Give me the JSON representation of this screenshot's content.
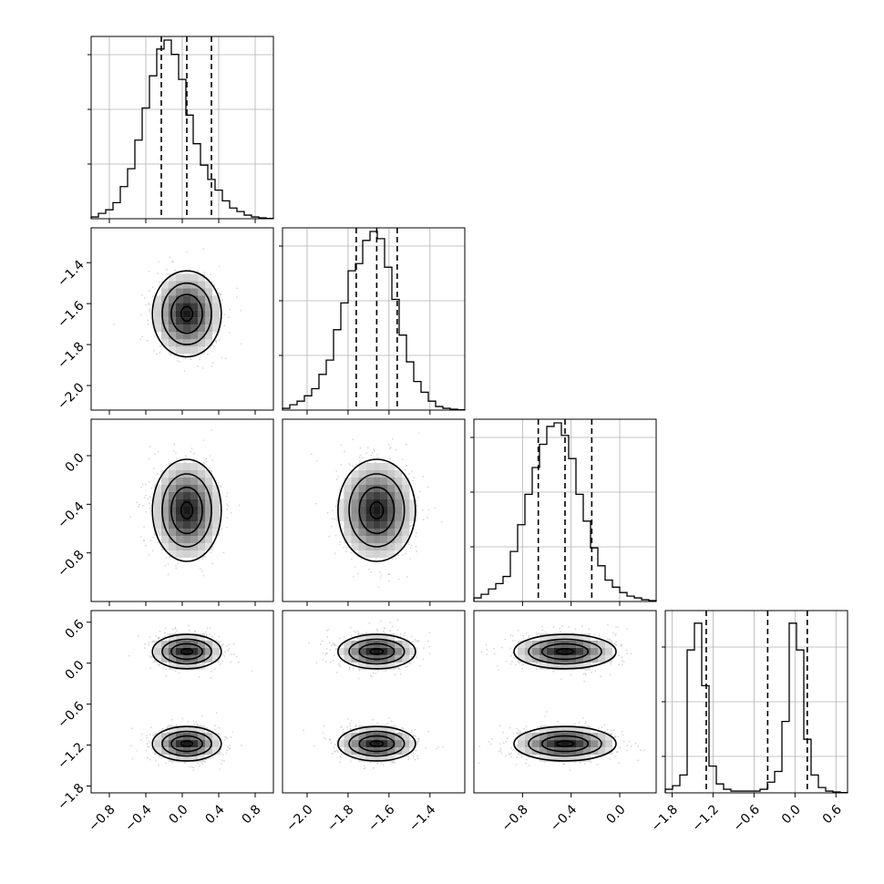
{
  "chart_data": {
    "type": "corner",
    "parameters": 4,
    "colors": {
      "hist": "#000000",
      "grid": "#b0b0b0",
      "quantile": "#000000",
      "density": "#000000",
      "points": "#bdbdbd"
    },
    "grid": true,
    "axes": [
      {
        "range": [
          -1.0,
          1.0
        ],
        "ticks": [
          -0.8,
          -0.4,
          0.0,
          0.4,
          0.8
        ],
        "tick_labels": [
          "−0.8",
          "−0.4",
          "0.0",
          "0.4",
          "0.8"
        ]
      },
      {
        "range": [
          -2.12,
          -1.23
        ],
        "ticks": [
          -2.0,
          -1.8,
          -1.6,
          -1.4
        ],
        "tick_labels": [
          "−2.0",
          "−1.8",
          "−1.6",
          "−1.4"
        ]
      },
      {
        "range": [
          -1.2,
          0.3
        ],
        "ticks": [
          -0.8,
          -0.4,
          0.0
        ],
        "tick_labels": [
          "−0.8",
          "−0.4",
          "0.0"
        ]
      },
      {
        "range": [
          -1.9,
          0.77
        ],
        "ticks": [
          -1.8,
          -1.2,
          -0.6,
          0.0,
          0.6
        ],
        "tick_labels": [
          "−1.8",
          "−1.2",
          "−0.6",
          "0.0",
          "0.6"
        ]
      }
    ],
    "diagonal_histograms": [
      {
        "parameter": 0,
        "bins": 25,
        "counts": [
          0.01,
          0.03,
          0.05,
          0.09,
          0.18,
          0.28,
          0.44,
          0.62,
          0.8,
          0.95,
          1.0,
          0.92,
          0.78,
          0.58,
          0.42,
          0.3,
          0.22,
          0.16,
          0.1,
          0.06,
          0.04,
          0.02,
          0.01,
          0.005,
          0.002
        ],
        "quantiles": [
          -0.23,
          0.05,
          0.32
        ],
        "y_ticks": [
          0.3,
          0.6,
          0.9
        ]
      },
      {
        "parameter": 1,
        "bins": 25,
        "counts": [
          0.01,
          0.03,
          0.05,
          0.08,
          0.12,
          0.2,
          0.28,
          0.45,
          0.6,
          0.78,
          0.82,
          0.95,
          1.0,
          0.96,
          0.8,
          0.62,
          0.42,
          0.27,
          0.16,
          0.1,
          0.05,
          0.02,
          0.01,
          0.005,
          0.002
        ],
        "quantiles": [
          -1.76,
          -1.66,
          -1.56
        ],
        "y_ticks": [
          0.3,
          0.6,
          0.9
        ]
      },
      {
        "parameter": 2,
        "bins": 25,
        "counts": [
          0.02,
          0.04,
          0.07,
          0.1,
          0.14,
          0.28,
          0.43,
          0.6,
          0.75,
          0.88,
          0.98,
          1.0,
          0.93,
          0.8,
          0.6,
          0.45,
          0.3,
          0.2,
          0.12,
          0.08,
          0.05,
          0.03,
          0.02,
          0.01,
          0.005
        ],
        "quantiles": [
          -0.67,
          -0.45,
          -0.23
        ],
        "y_ticks": [
          0.3,
          0.6,
          0.9
        ]
      },
      {
        "parameter": 3,
        "bins": 25,
        "counts": [
          0.02,
          0.04,
          0.1,
          0.8,
          0.95,
          0.6,
          0.15,
          0.05,
          0.02,
          0.01,
          0.01,
          0.01,
          0.01,
          0.02,
          0.06,
          0.12,
          0.4,
          0.95,
          0.8,
          0.3,
          0.1,
          0.03,
          0.01,
          0.005,
          0.002
        ],
        "quantiles": [
          -1.3,
          -0.4,
          0.18
        ],
        "y_ticks": [
          0.2,
          0.5,
          0.8
        ]
      }
    ],
    "joint_panels": [
      {
        "x": 0,
        "y": 1,
        "modes": [
          {
            "mx": 0.05,
            "my": -1.65,
            "sx": 0.18,
            "sy": 0.1
          }
        ]
      },
      {
        "x": 0,
        "y": 2,
        "modes": [
          {
            "mx": 0.05,
            "my": -0.45,
            "sx": 0.18,
            "sy": 0.2
          }
        ]
      },
      {
        "x": 1,
        "y": 2,
        "modes": [
          {
            "mx": -1.66,
            "my": -0.45,
            "sx": 0.09,
            "sy": 0.2
          }
        ]
      },
      {
        "x": 0,
        "y": 3,
        "modes": [
          {
            "mx": 0.05,
            "my": 0.17,
            "sx": 0.18,
            "sy": 0.12
          },
          {
            "mx": 0.05,
            "my": -1.18,
            "sx": 0.18,
            "sy": 0.12
          }
        ]
      },
      {
        "x": 1,
        "y": 3,
        "modes": [
          {
            "mx": -1.66,
            "my": 0.17,
            "sx": 0.09,
            "sy": 0.12
          },
          {
            "mx": -1.66,
            "my": -1.18,
            "sx": 0.09,
            "sy": 0.12
          }
        ]
      },
      {
        "x": 2,
        "y": 3,
        "modes": [
          {
            "mx": -0.45,
            "my": 0.17,
            "sx": 0.2,
            "sy": 0.12
          },
          {
            "mx": -0.45,
            "my": -1.18,
            "sx": 0.2,
            "sy": 0.12
          }
        ]
      }
    ]
  }
}
